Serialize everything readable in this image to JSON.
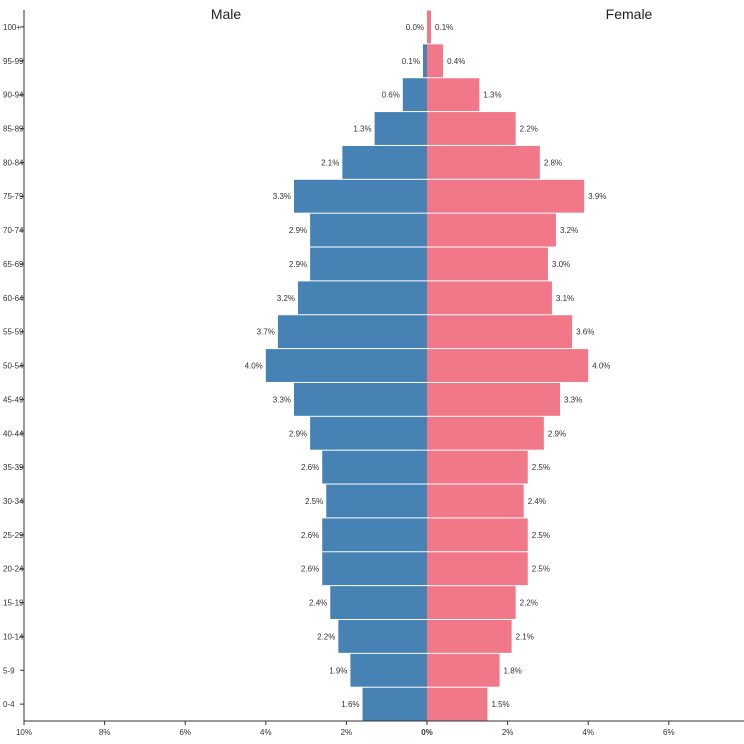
{
  "chart_data": {
    "type": "bar",
    "subtype": "population-pyramid",
    "categories": [
      "100+",
      "95-99",
      "90-94",
      "85-89",
      "80-84",
      "75-79",
      "70-74",
      "65-69",
      "60-64",
      "55-59",
      "50-54",
      "45-49",
      "40-44",
      "35-39",
      "30-34",
      "25-29",
      "20-24",
      "15-19",
      "10-14",
      "5-9",
      "0-4"
    ],
    "series": [
      {
        "name": "Male",
        "color": "#4682b4",
        "values": [
          0.0,
          0.1,
          0.6,
          1.3,
          2.1,
          3.3,
          2.9,
          2.9,
          3.2,
          3.7,
          4.0,
          3.3,
          2.9,
          2.6,
          2.5,
          2.6,
          2.6,
          2.4,
          2.2,
          1.9,
          1.6
        ],
        "labels": [
          "0.0%",
          "0.1%",
          "0.6%",
          "1.3%",
          "2.1%",
          "3.3%",
          "2.9%",
          "2.9%",
          "3.2%",
          "3.7%",
          "4.0%",
          "3.3%",
          "2.9%",
          "2.6%",
          "2.5%",
          "2.6%",
          "2.6%",
          "2.4%",
          "2.2%",
          "1.9%",
          "1.6%"
        ]
      },
      {
        "name": "Female",
        "color": "#f07888",
        "values": [
          0.1,
          0.4,
          1.3,
          2.2,
          2.8,
          3.9,
          3.2,
          3.0,
          3.1,
          3.6,
          4.0,
          3.3,
          2.9,
          2.5,
          2.4,
          2.5,
          2.5,
          2.2,
          2.1,
          1.8,
          1.5
        ],
        "labels": [
          "0.1%",
          "0.4%",
          "1.3%",
          "2.2%",
          "2.8%",
          "3.9%",
          "3.2%",
          "3.0%",
          "3.1%",
          "3.6%",
          "4.0%",
          "3.3%",
          "2.9%",
          "2.5%",
          "2.4%",
          "2.5%",
          "2.5%",
          "2.2%",
          "2.1%",
          "1.8%",
          "1.5%"
        ]
      }
    ],
    "xaxis": {
      "ticks": [
        -10,
        -8,
        -6,
        -4,
        -2,
        0,
        2,
        4,
        6
      ],
      "tick_labels": [
        "10%",
        "8%",
        "6%",
        "4%",
        "2%",
        "0%",
        "2%",
        "4%",
        "6%"
      ],
      "range": [
        -10,
        7.9
      ]
    },
    "headers": {
      "left": "Male",
      "right": "Female"
    }
  }
}
